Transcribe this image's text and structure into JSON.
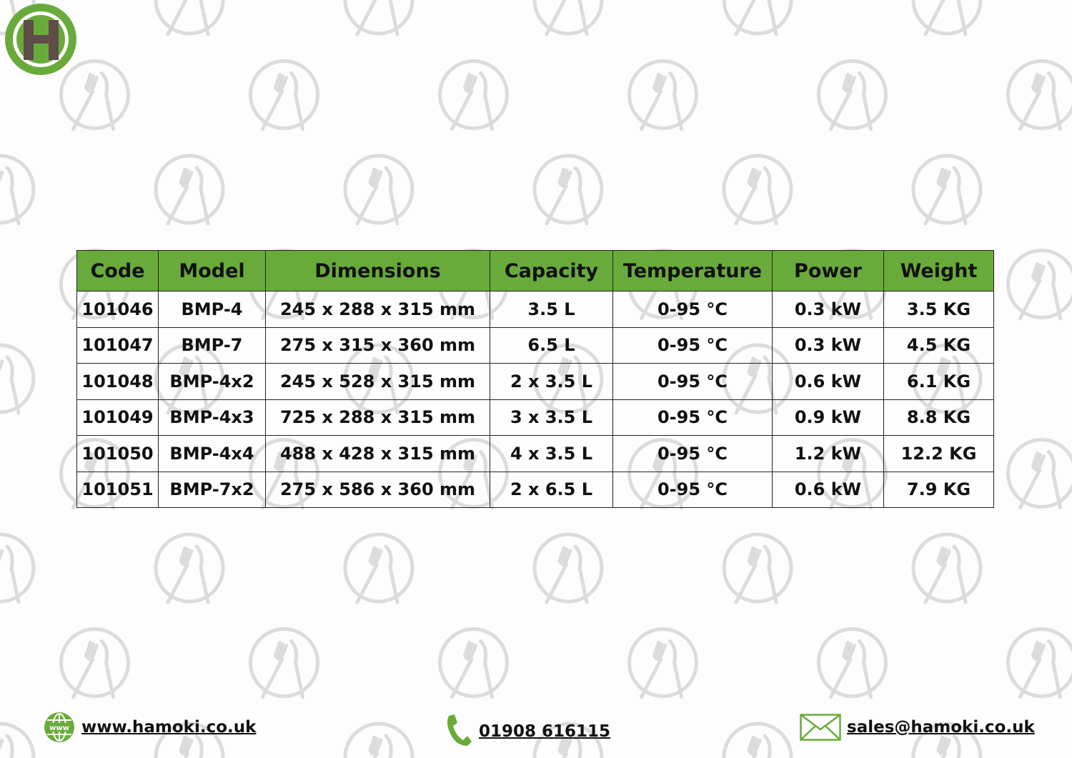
{
  "brand": {
    "logo_letter": "H",
    "accent_color": "#69ab3b",
    "logo_letter_color": "#5e4d48"
  },
  "table": {
    "headers": [
      "Code",
      "Model",
      "Dimensions",
      "Capacity",
      "Temperature",
      "Power",
      "Weight"
    ],
    "rows": [
      [
        "101046",
        "BMP-4",
        "245 x 288 x 315 mm",
        "3.5 L",
        "0-95 °C",
        "0.3 kW",
        "3.5 KG"
      ],
      [
        "101047",
        "BMP-7",
        "275 x 315 x 360 mm",
        "6.5 L",
        "0-95 °C",
        "0.3 kW",
        "4.5 KG"
      ],
      [
        "101048",
        "BMP-4x2",
        "245 x 528 x 315 mm",
        "2 x 3.5 L",
        "0-95 °C",
        "0.6 kW",
        "6.1 KG"
      ],
      [
        "101049",
        "BMP-4x3",
        "725 x 288 x 315 mm",
        "3 x 3.5 L",
        "0-95 °C",
        "0.9 kW",
        "8.8 KG"
      ],
      [
        "101050",
        "BMP-4x4",
        "488 x 428 x 315 mm",
        "4 x 3.5 L",
        "0-95 °C",
        "1.2 kW",
        "12.2 KG"
      ],
      [
        "101051",
        "BMP-7x2",
        "275 x 586 x 360 mm",
        "2 x 6.5 L",
        "0-95 °C",
        "0.6 kW",
        "7.9 KG"
      ]
    ]
  },
  "footer": {
    "website": {
      "label": "www.hamoki.co.uk",
      "icon": "globe-www-icon",
      "icon_text": "www"
    },
    "phone": {
      "label": "01908 616115",
      "icon": "phone-icon"
    },
    "email": {
      "label": "sales@hamoki.co.uk",
      "icon": "envelope-icon"
    }
  }
}
